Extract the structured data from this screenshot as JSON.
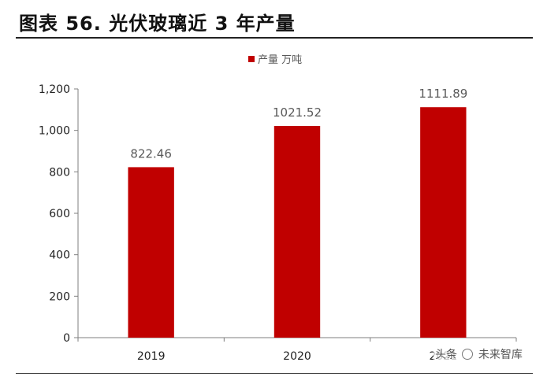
{
  "title": "图表 56. 光伏玻璃近 3 年产量",
  "chart_data": {
    "type": "bar",
    "categories": [
      "2019",
      "2020",
      "2021"
    ],
    "series": [
      {
        "name": "产量 万吨",
        "values": [
          822.46,
          1021.52,
          1111.89
        ],
        "color": "#C00000"
      }
    ],
    "data_labels": [
      "822.46",
      "1021.52",
      "1111.89"
    ],
    "ylim": [
      0,
      1200
    ],
    "yticks": [
      0,
      200,
      400,
      600,
      800,
      1000,
      1200
    ],
    "ytick_labels": [
      "0",
      "200",
      "400",
      "600",
      "800",
      "1,000",
      "1,200"
    ],
    "legend_position": "top",
    "grid": false,
    "axis_color": "#7f7f7f",
    "label_color": "#595959"
  },
  "watermark": {
    "text_left": "头条",
    "text_right": "未来智库"
  }
}
